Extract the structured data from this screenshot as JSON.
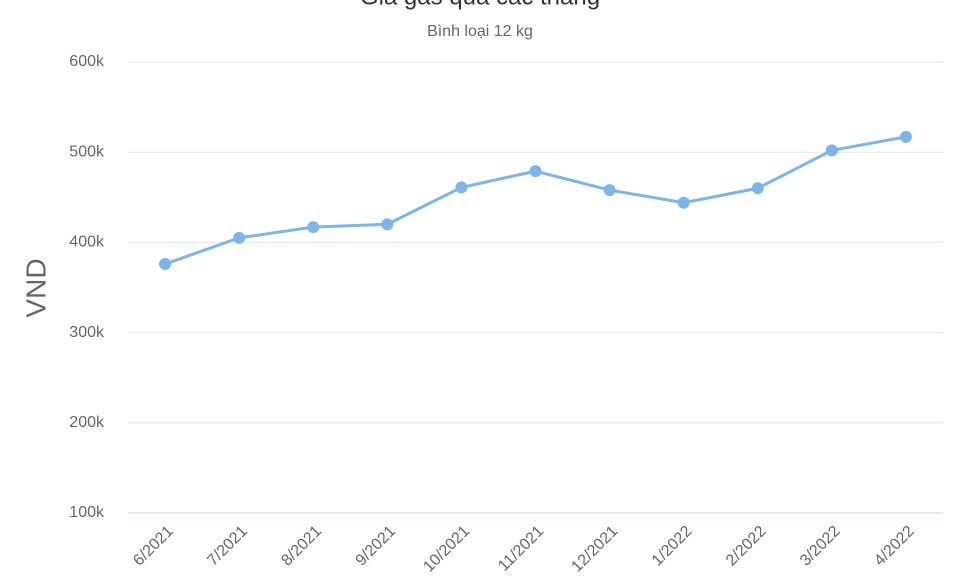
{
  "chart_data": {
    "type": "line",
    "title": "Giá gas qua các tháng",
    "subtitle": "Bình loại 12 kg",
    "y_label": "VND",
    "categories": [
      "6/2021",
      "7/2021",
      "8/2021",
      "9/2021",
      "10/2021",
      "11/2021",
      "12/2021",
      "1/2022",
      "2/2022",
      "3/2022",
      "4/2022"
    ],
    "series": [
      {
        "name": "Giá gas",
        "color": "#7cb5ec",
        "values": [
          376000,
          405000,
          417000,
          420000,
          461000,
          479000,
          458000,
          444000,
          460000,
          502000,
          517000
        ]
      }
    ],
    "ylim": [
      100000,
      600000
    ],
    "yticks": [
      {
        "value": 100000,
        "label": "100k"
      },
      {
        "value": 200000,
        "label": "200k"
      },
      {
        "value": 300000,
        "label": "300k"
      },
      {
        "value": 400000,
        "label": "400k"
      },
      {
        "value": 500000,
        "label": "500k"
      },
      {
        "value": 600000,
        "label": "600k"
      }
    ],
    "grid": true
  }
}
